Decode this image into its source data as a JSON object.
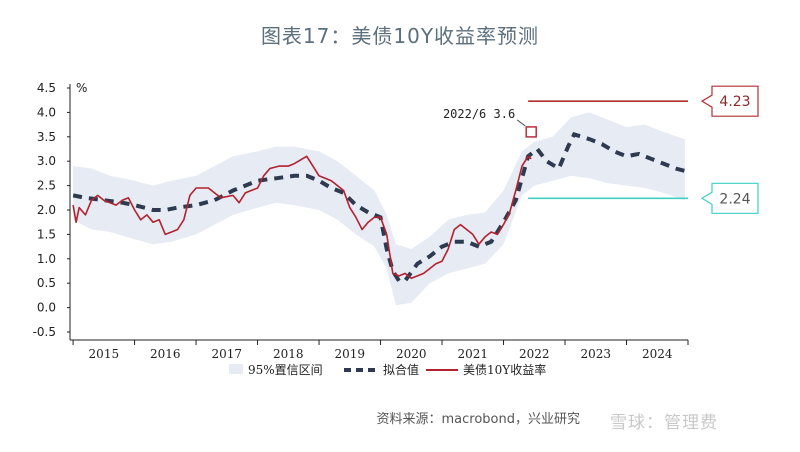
{
  "title": "图表17：美债10Y收益率预测",
  "source": "资料来源：macrobond，兴业研究",
  "watermark": "雪球：管理费",
  "colors": {
    "band": "#e6ebf4",
    "fit": "#2d3a4f",
    "actual": "#b2222f",
    "upper_line": "#b22f2f",
    "lower_line": "#3fd0c2",
    "upper_box": "#b22f2f",
    "lower_box": "#3fd0c2"
  },
  "chart_data": {
    "type": "line",
    "y_unit": "%",
    "ylim": [
      -0.5,
      4.5
    ],
    "yticks": [
      "4.5",
      "4.0",
      "3.5",
      "3.0",
      "2.5",
      "2.0",
      "1.5",
      "1.0",
      "0.5",
      "0.0",
      "-0.5"
    ],
    "xlim": [
      2014.95,
      2025.0
    ],
    "xticks": [
      "2015",
      "2016",
      "2017",
      "2018",
      "2019",
      "2020",
      "2021",
      "2022",
      "2023",
      "2024"
    ],
    "legend": [
      "95%置信区间",
      "拟合值",
      "美债10Y收益率"
    ],
    "legend_position": "bottom",
    "series": [
      {
        "name": "美债10Y收益率",
        "style": "solid",
        "x": [
          2015.0,
          2015.05,
          2015.1,
          2015.2,
          2015.3,
          2015.4,
          2015.5,
          2015.6,
          2015.7,
          2015.8,
          2015.9,
          2016.0,
          2016.1,
          2016.2,
          2016.3,
          2016.4,
          2016.5,
          2016.6,
          2016.7,
          2016.8,
          2016.9,
          2017.0,
          2017.2,
          2017.4,
          2017.6,
          2017.7,
          2017.8,
          2018.0,
          2018.1,
          2018.2,
          2018.35,
          2018.5,
          2018.6,
          2018.8,
          2018.9,
          2019.0,
          2019.2,
          2019.4,
          2019.5,
          2019.6,
          2019.7,
          2019.8,
          2019.9,
          2020.0,
          2020.1,
          2020.2,
          2020.3,
          2020.4,
          2020.5,
          2020.6,
          2020.7,
          2020.8,
          2020.9,
          2021.0,
          2021.1,
          2021.2,
          2021.3,
          2021.5,
          2021.6,
          2021.7,
          2021.8,
          2021.9,
          2022.0,
          2022.1,
          2022.2,
          2022.3,
          2022.4,
          2022.45
        ],
        "values": [
          2.1,
          1.75,
          2.05,
          1.9,
          2.2,
          2.3,
          2.2,
          2.15,
          2.1,
          2.2,
          2.25,
          2.0,
          1.8,
          1.9,
          1.75,
          1.8,
          1.5,
          1.55,
          1.6,
          1.8,
          2.3,
          2.45,
          2.45,
          2.25,
          2.3,
          2.15,
          2.35,
          2.45,
          2.7,
          2.85,
          2.9,
          2.9,
          2.95,
          3.1,
          2.9,
          2.7,
          2.6,
          2.4,
          2.05,
          1.85,
          1.6,
          1.75,
          1.85,
          1.85,
          1.5,
          0.7,
          0.65,
          0.7,
          0.6,
          0.65,
          0.7,
          0.8,
          0.9,
          0.95,
          1.2,
          1.6,
          1.7,
          1.5,
          1.3,
          1.45,
          1.55,
          1.5,
          1.7,
          1.95,
          2.4,
          2.9,
          3.1,
          3.05
        ]
      },
      {
        "name": "拟合值",
        "style": "dashed",
        "x": [
          2015.0,
          2015.2,
          2015.5,
          2015.8,
          2016.0,
          2016.3,
          2016.5,
          2016.7,
          2017.0,
          2017.3,
          2017.6,
          2017.8,
          2018.0,
          2018.3,
          2018.6,
          2018.8,
          2019.0,
          2019.2,
          2019.4,
          2019.6,
          2019.8,
          2020.0,
          2020.1,
          2020.2,
          2020.3,
          2020.4,
          2020.6,
          2020.8,
          2021.0,
          2021.2,
          2021.4,
          2021.6,
          2021.8,
          2022.0,
          2022.2,
          2022.4,
          2022.55,
          2022.7,
          2022.9,
          2023.05,
          2023.15,
          2023.4,
          2023.6,
          2023.8,
          2024.0,
          2024.2,
          2024.4,
          2024.6,
          2024.8,
          2024.95
        ],
        "values": [
          2.3,
          2.25,
          2.2,
          2.15,
          2.1,
          2.0,
          2.0,
          2.05,
          2.1,
          2.2,
          2.4,
          2.5,
          2.6,
          2.65,
          2.7,
          2.7,
          2.6,
          2.45,
          2.35,
          2.1,
          1.95,
          1.85,
          1.2,
          0.75,
          0.55,
          0.55,
          0.9,
          1.05,
          1.25,
          1.35,
          1.35,
          1.25,
          1.35,
          1.75,
          2.2,
          3.1,
          3.25,
          3.0,
          2.85,
          3.3,
          3.55,
          3.45,
          3.35,
          3.2,
          3.1,
          3.15,
          3.05,
          2.95,
          2.85,
          2.8
        ]
      },
      {
        "name": "95%置信区间",
        "style": "band",
        "x": [
          2015.0,
          2015.3,
          2015.6,
          2016.0,
          2016.3,
          2016.6,
          2017.0,
          2017.3,
          2017.6,
          2018.0,
          2018.3,
          2018.6,
          2019.0,
          2019.3,
          2019.6,
          2019.9,
          2020.1,
          2020.25,
          2020.5,
          2020.8,
          2021.1,
          2021.4,
          2021.7,
          2022.0,
          2022.3,
          2022.5,
          2022.8,
          2023.1,
          2023.4,
          2023.7,
          2024.0,
          2024.3,
          2024.6,
          2024.95
        ],
        "upper": [
          2.9,
          2.85,
          2.7,
          2.6,
          2.5,
          2.6,
          2.7,
          2.9,
          3.1,
          3.2,
          3.3,
          3.3,
          3.2,
          3.0,
          2.7,
          2.4,
          1.9,
          1.3,
          1.2,
          1.45,
          1.8,
          1.9,
          1.95,
          2.4,
          3.2,
          3.4,
          3.5,
          3.9,
          4.0,
          3.85,
          3.7,
          3.75,
          3.6,
          3.45
        ],
        "lower": [
          1.8,
          1.6,
          1.55,
          1.4,
          1.3,
          1.35,
          1.5,
          1.7,
          1.9,
          2.05,
          2.15,
          2.1,
          2.0,
          1.8,
          1.5,
          1.25,
          0.8,
          0.05,
          0.1,
          0.5,
          0.7,
          0.8,
          0.9,
          1.3,
          2.3,
          2.5,
          2.6,
          2.7,
          2.65,
          2.55,
          2.5,
          2.45,
          2.35,
          2.2
        ]
      }
    ],
    "reference_lines": [
      {
        "value": 4.23,
        "label": "4.23",
        "x_start": 2022.4
      },
      {
        "value": 2.24,
        "label": "2.24",
        "x_start": 2022.4
      }
    ],
    "annotation": {
      "text": "2022/6  3.6",
      "x": 2022.45,
      "y": 3.6
    }
  }
}
